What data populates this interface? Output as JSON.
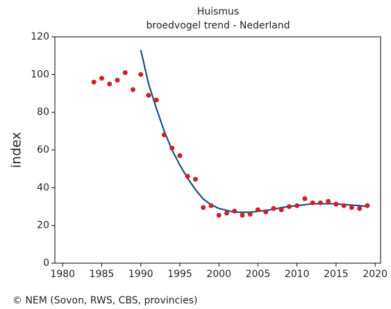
{
  "chart_data": {
    "type": "scatter",
    "title": "Huismus",
    "subtitle": "broedvogel trend - Nederland",
    "ylabel": "index",
    "source": "© NEM (Sovon, RWS, CBS, provincies)",
    "color": "#cc1f2a",
    "x": [
      1984,
      1985,
      1986,
      1987,
      1988,
      1989,
      1990,
      1991,
      1992,
      1993,
      1994,
      1995,
      1996,
      1997,
      1998,
      1999,
      2000,
      2001,
      2002,
      2003,
      2004,
      2005,
      2006,
      2007,
      2008,
      2009,
      2010,
      2011,
      2012,
      2013,
      2014,
      2015,
      2016,
      2017,
      2018,
      2019
    ],
    "values": [
      96,
      98,
      95,
      97,
      101,
      92,
      100,
      89,
      86.5,
      68,
      61,
      57,
      46,
      44.5,
      29.5,
      30.5,
      25.4,
      26.5,
      27.6,
      25.4,
      26,
      28.3,
      27.2,
      29,
      28.3,
      30,
      30.5,
      34.2,
      32,
      32,
      32.8,
      31.3,
      30.5,
      29.5,
      29,
      30.5
    ],
    "trend": {
      "color": "#1f4e79",
      "x": [
        1990,
        1991,
        1992,
        1993,
        1994,
        1995,
        1996,
        1997,
        1998,
        1999,
        2000,
        2001,
        2002,
        2003,
        2004,
        2005,
        2006,
        2007,
        2008,
        2009,
        2010,
        2011,
        2012,
        2013,
        2014,
        2015,
        2016,
        2017,
        2018,
        2019
      ],
      "values": [
        113,
        95,
        82,
        70,
        60,
        52,
        45,
        39,
        34,
        31,
        29,
        28,
        27,
        27,
        27,
        27.5,
        28,
        28.5,
        29.5,
        30,
        30.5,
        31,
        31.5,
        31.5,
        31.5,
        31.5,
        31,
        30.8,
        30.5,
        30
      ]
    },
    "xlim": [
      1979,
      2020.7
    ],
    "ylim": [
      0,
      120
    ],
    "xticks": [
      1980,
      1985,
      1990,
      1995,
      2000,
      2005,
      2010,
      2015,
      2020
    ],
    "yticks": [
      0,
      20,
      40,
      60,
      80,
      100,
      120
    ]
  }
}
